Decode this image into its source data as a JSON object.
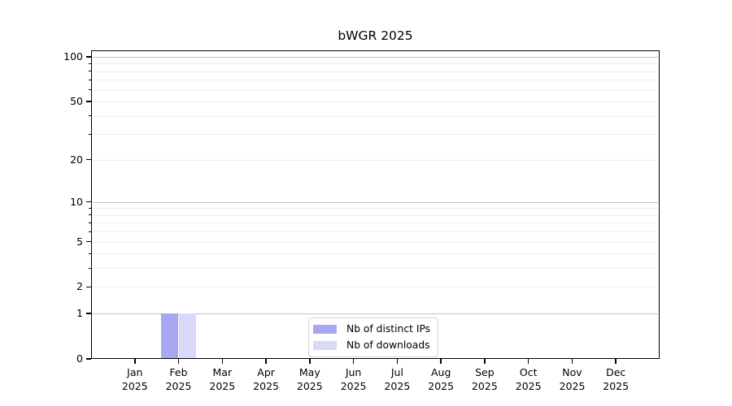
{
  "chart_data": {
    "type": "bar",
    "title": "bWGR 2025",
    "categories": [
      "Jan 2025",
      "Feb 2025",
      "Mar 2025",
      "Apr 2025",
      "May 2025",
      "Jun 2025",
      "Jul 2025",
      "Aug 2025",
      "Sep 2025",
      "Oct 2025",
      "Nov 2025",
      "Dec 2025"
    ],
    "series": [
      {
        "name": "Nb of distinct IPs",
        "key": "distinct-ips",
        "color": "#a7a7f3",
        "values": [
          0,
          1,
          0,
          0,
          0,
          0,
          0,
          0,
          0,
          0,
          0,
          0
        ]
      },
      {
        "name": "Nb of downloads",
        "key": "downloads",
        "color": "#d9d9f8",
        "values": [
          0,
          1,
          0,
          0,
          0,
          0,
          0,
          0,
          0,
          0,
          0,
          0
        ]
      }
    ],
    "xlabel": "",
    "ylabel": "",
    "yscale": "log1p",
    "ylim": [
      0,
      110
    ],
    "ytick_values": [
      0,
      1,
      2,
      5,
      10,
      20,
      50,
      100
    ],
    "ytick_labels": [
      "0",
      "1",
      "2",
      "5",
      "10",
      "20",
      "50",
      "100"
    ],
    "ymajor_values": [
      1,
      10,
      100
    ],
    "yminor_values": [
      3,
      4,
      6,
      7,
      8,
      9,
      30,
      40,
      60,
      70,
      80,
      90
    ],
    "grid": "horizontal",
    "legend_position": "lower center inside",
    "colors": {
      "grid_major": "#c2c2c2",
      "grid_minor": "#eeeeee",
      "spine": "#000000",
      "legend_border": "#d5d5d5",
      "background": "#ffffff",
      "text": "#000000"
    }
  }
}
